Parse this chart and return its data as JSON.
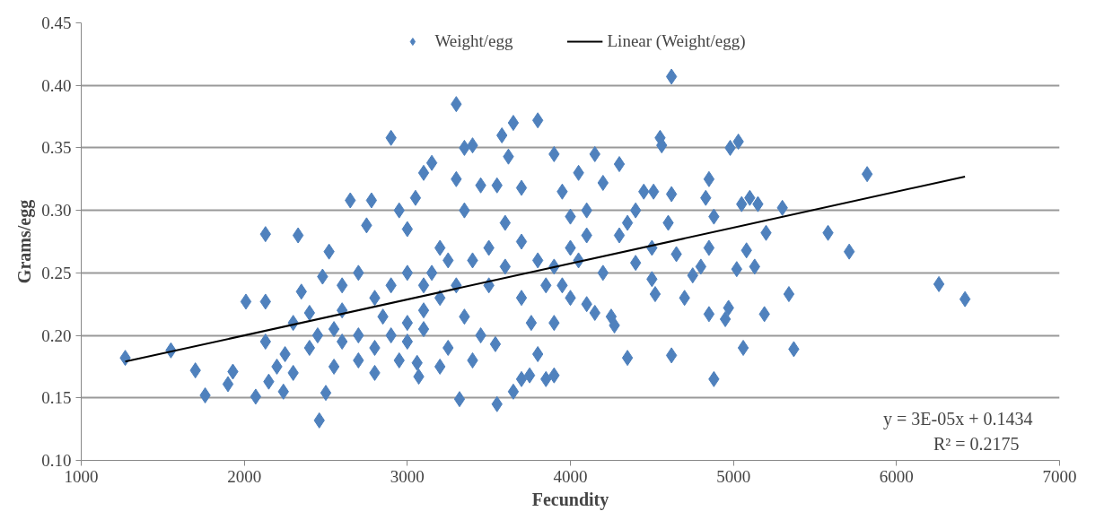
{
  "chart_data": {
    "type": "scatter",
    "xlabel": "Fecundity",
    "ylabel": "Grams/egg",
    "xlim": [
      1000,
      7000
    ],
    "xticks": [
      1000,
      2000,
      3000,
      4000,
      5000,
      6000,
      7000
    ],
    "ylim": [
      0.1,
      0.45
    ],
    "yticks": [
      {
        "value": 0.1,
        "label": "0.10"
      },
      {
        "value": 0.15,
        "label": "0.15"
      },
      {
        "value": 0.2,
        "label": "0.20"
      },
      {
        "value": 0.25,
        "label": "0.25"
      },
      {
        "value": 0.3,
        "label": "0.30"
      },
      {
        "value": 0.35,
        "label": "0.35"
      },
      {
        "value": 0.4,
        "label": "0.40"
      },
      {
        "value": 0.45,
        "label": "0.45"
      }
    ],
    "grid": "y",
    "legend": "top",
    "annotations": [
      "y = 3E-05x + 0.1434",
      "R² = 0.2175"
    ],
    "series": [
      {
        "name": "Weight/egg",
        "color": "#4f81bd",
        "marker": "diamond",
        "x": [
          1270,
          1550,
          1700,
          1760,
          1900,
          1930,
          2010,
          2070,
          2130,
          2130,
          2150,
          2130,
          2200,
          2240,
          2330,
          2460,
          2500,
          2520,
          2480,
          2400,
          2350,
          2300,
          2250,
          2600,
          2650,
          2780,
          2750,
          2700,
          2800,
          2900,
          2950,
          3000,
          3050,
          3100,
          3150,
          3000,
          3100,
          3200,
          3300,
          3350,
          3400,
          3300,
          3350,
          3450,
          3550,
          3580,
          3650,
          3800,
          3620,
          3700,
          3900,
          3950,
          4000,
          4050,
          4150,
          4300,
          4200,
          4100,
          4000,
          3900,
          3800,
          3700,
          3600,
          3500,
          3400,
          3300,
          3200,
          3100,
          3000,
          2900,
          2800,
          2700,
          2600,
          2550,
          3070,
          3060,
          3200,
          3320,
          3550,
          3540,
          3650,
          3700,
          3750,
          3900,
          3850,
          3800,
          3760,
          3900,
          4000,
          4100,
          4150,
          4250,
          4270,
          4350,
          4400,
          4500,
          4510,
          4550,
          4560,
          4620,
          4600,
          4620,
          4650,
          4700,
          4750,
          4800,
          4830,
          4850,
          4850,
          4850,
          4880,
          4880,
          4950,
          4970,
          4980,
          5030,
          5050,
          5020,
          5060,
          5100,
          5080,
          5130,
          5150,
          5200,
          5190,
          5300,
          5340,
          5370,
          5580,
          5710,
          5820,
          6260,
          6420,
          4620,
          4500,
          4520,
          4200,
          4300,
          4400,
          4350,
          4450,
          3000,
          3100,
          2850,
          2950,
          3250,
          3400,
          3450,
          3350,
          3150,
          3250,
          2900,
          2800,
          2700,
          2600,
          2550,
          2400,
          2300,
          2450,
          3700,
          3850,
          3950,
          4050,
          3600,
          3500,
          4100
        ],
        "values": [
          0.182,
          0.188,
          0.172,
          0.152,
          0.161,
          0.171,
          0.227,
          0.151,
          0.281,
          0.227,
          0.163,
          0.195,
          0.175,
          0.155,
          0.28,
          0.132,
          0.154,
          0.267,
          0.247,
          0.218,
          0.235,
          0.21,
          0.185,
          0.22,
          0.308,
          0.308,
          0.288,
          0.2,
          0.17,
          0.358,
          0.3,
          0.285,
          0.31,
          0.33,
          0.338,
          0.25,
          0.24,
          0.27,
          0.385,
          0.35,
          0.352,
          0.325,
          0.3,
          0.32,
          0.32,
          0.36,
          0.37,
          0.372,
          0.343,
          0.318,
          0.345,
          0.315,
          0.295,
          0.33,
          0.345,
          0.337,
          0.322,
          0.28,
          0.27,
          0.255,
          0.26,
          0.275,
          0.255,
          0.24,
          0.26,
          0.24,
          0.23,
          0.22,
          0.21,
          0.2,
          0.19,
          0.18,
          0.195,
          0.175,
          0.167,
          0.178,
          0.175,
          0.149,
          0.145,
          0.193,
          0.155,
          0.165,
          0.168,
          0.168,
          0.165,
          0.185,
          0.21,
          0.21,
          0.23,
          0.225,
          0.218,
          0.215,
          0.208,
          0.182,
          0.258,
          0.27,
          0.315,
          0.358,
          0.352,
          0.407,
          0.29,
          0.313,
          0.265,
          0.23,
          0.248,
          0.255,
          0.31,
          0.325,
          0.27,
          0.217,
          0.165,
          0.295,
          0.213,
          0.222,
          0.35,
          0.355,
          0.305,
          0.253,
          0.19,
          0.31,
          0.268,
          0.255,
          0.305,
          0.282,
          0.217,
          0.302,
          0.233,
          0.189,
          0.282,
          0.267,
          0.329,
          0.241,
          0.229,
          0.184,
          0.245,
          0.233,
          0.25,
          0.28,
          0.3,
          0.29,
          0.315,
          0.195,
          0.205,
          0.215,
          0.18,
          0.19,
          0.18,
          0.2,
          0.215,
          0.25,
          0.26,
          0.24,
          0.23,
          0.25,
          0.24,
          0.205,
          0.19,
          0.17,
          0.2,
          0.23,
          0.24,
          0.24,
          0.26,
          0.29,
          0.27,
          0.3
        ]
      },
      {
        "name": "Linear (Weight/egg)",
        "color": "#000000",
        "type": "line",
        "marker": "none",
        "x": [
          1270,
          6420
        ],
        "values": [
          0.179,
          0.327
        ]
      }
    ]
  }
}
